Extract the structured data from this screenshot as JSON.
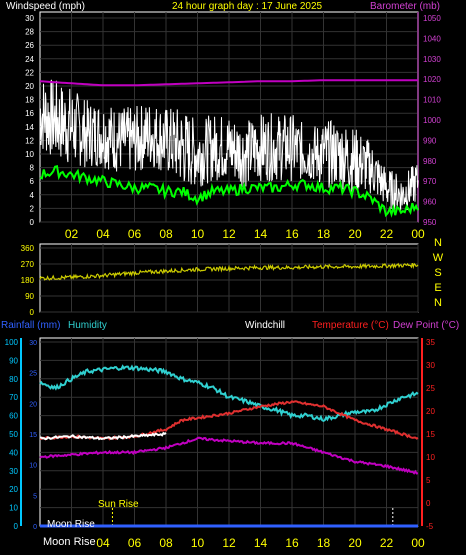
{
  "header": {
    "windspeed": "Windspeed (mph)",
    "title": "24 hour graph day : 17 June 2025",
    "barometer": "Barometer (mb)"
  },
  "middle_labels": {
    "rainfall": "Rainfall (mm)",
    "humidity": "Humidity",
    "windchill": "Windchill",
    "temperature": "Temperature (°C)",
    "dewpoint": "Dew Point (°C)"
  },
  "events": {
    "sun_rise": "Sun Rise",
    "moon_rise": "Moon Rise",
    "moon_phase": "Moon Rise"
  },
  "colors": {
    "wind": "#ffffff",
    "gust": "#00ff00",
    "barometer": "#c000c0",
    "direction": "#cccc00",
    "humidity": "#30d0d0",
    "temperature": "#e03030",
    "dewpoint": "#c000c0",
    "windchill": "#ffffff",
    "rainfall": "#3060ff",
    "axis_yellow": "#ffff00",
    "axis_cyan": "#00c8ff",
    "axis_red": "#ff2020"
  },
  "chart_data": [
    {
      "type": "line",
      "name": "wind-barometer",
      "x_ticks": [
        "02",
        "04",
        "06",
        "08",
        "10",
        "12",
        "14",
        "16",
        "18",
        "20",
        "22",
        "00"
      ],
      "y_left_ticks": [
        "0",
        "2",
        "4",
        "6",
        "8",
        "10",
        "12",
        "14",
        "16",
        "18",
        "20",
        "22",
        "24",
        "26",
        "28",
        "30"
      ],
      "y_right_ticks": [
        "950",
        "960",
        "970",
        "980",
        "990",
        "1000",
        "1010",
        "1020",
        "1030",
        "1040",
        "1050"
      ],
      "ylim_left": [
        0,
        30
      ],
      "ylim_right": [
        950,
        1050
      ],
      "xlim": [
        0,
        24
      ],
      "series": [
        {
          "key": "windspeed",
          "x": [
            0,
            1,
            2,
            3,
            4,
            5,
            6,
            7,
            8,
            9,
            10,
            11,
            12,
            13,
            14,
            15,
            16,
            17,
            18,
            19,
            20,
            21,
            22,
            23,
            24
          ],
          "values": [
            16,
            15,
            14,
            13,
            13,
            12,
            12,
            13,
            12,
            11,
            10,
            11,
            11,
            10,
            11,
            11,
            11,
            10,
            10,
            10,
            9,
            8,
            5,
            4,
            6
          ],
          "spread": [
            6,
            6,
            6,
            5,
            5,
            5,
            5,
            5,
            5,
            6,
            5,
            5,
            5,
            5,
            5,
            5,
            5,
            4,
            5,
            5,
            5,
            4,
            3,
            3,
            3
          ]
        },
        {
          "key": "gust",
          "x": [
            0,
            1,
            2,
            3,
            4,
            5,
            6,
            7,
            8,
            9,
            10,
            11,
            12,
            13,
            14,
            15,
            16,
            17,
            18,
            19,
            20,
            21,
            22,
            23,
            24
          ],
          "values": [
            7,
            7.5,
            7,
            6.5,
            6,
            5.5,
            5,
            5,
            4.5,
            4.5,
            3.5,
            4.5,
            4.5,
            5,
            5,
            5,
            5.5,
            5.5,
            5,
            5,
            4.5,
            3.5,
            1.5,
            1.5,
            2.5
          ]
        },
        {
          "key": "barometer",
          "x": [
            0,
            2,
            4,
            6,
            8,
            10,
            12,
            14,
            16,
            18,
            20,
            22,
            24
          ],
          "values": [
            1019,
            1018,
            1017,
            1017,
            1017.5,
            1018,
            1018.5,
            1019,
            1019,
            1019.5,
            1019.5,
            1019.5,
            1019.5
          ]
        }
      ]
    },
    {
      "type": "line",
      "name": "wind-direction",
      "y_ticks": [
        "0",
        "90",
        "180",
        "270",
        "360"
      ],
      "y_right_ticks": [
        "N",
        "W",
        "S",
        "E",
        "N"
      ],
      "ylim": [
        0,
        360
      ],
      "series": [
        {
          "key": "direction",
          "x": [
            0,
            2,
            4,
            6,
            8,
            10,
            12,
            14,
            16,
            18,
            20,
            22,
            24
          ],
          "values": [
            190,
            195,
            205,
            220,
            230,
            240,
            245,
            250,
            250,
            255,
            255,
            260,
            265
          ]
        }
      ]
    },
    {
      "type": "line",
      "name": "temperature-humidity",
      "y_left_ticks": [
        "0",
        "10",
        "20",
        "30",
        "40",
        "50",
        "60",
        "70",
        "80",
        "90",
        "100"
      ],
      "y_humidity_ticks": [
        "0",
        "5",
        "10",
        "15",
        "20",
        "25",
        "30"
      ],
      "y_right_ticks": [
        "-5",
        "0",
        "5",
        "10",
        "15",
        "20",
        "25",
        "30",
        "35"
      ],
      "ylim_left": [
        0,
        100
      ],
      "ylim_right": [
        -5,
        35
      ],
      "series": [
        {
          "key": "humidity",
          "x": [
            0,
            1,
            2,
            3,
            4,
            5,
            6,
            7,
            8,
            9,
            10,
            11,
            12,
            13,
            14,
            15,
            16,
            17,
            18,
            19,
            20,
            21,
            22,
            23,
            24
          ],
          "values": [
            78,
            75,
            80,
            84,
            85,
            86,
            86,
            85,
            84,
            80,
            78,
            75,
            70,
            68,
            65,
            63,
            60,
            60,
            58,
            60,
            62,
            62,
            66,
            70,
            72
          ]
        },
        {
          "key": "temperature",
          "x": [
            0,
            2,
            4,
            6,
            8,
            9,
            10,
            12,
            14,
            16,
            18,
            20,
            22,
            24
          ],
          "values": [
            14,
            14.5,
            14,
            14.5,
            16,
            18,
            18.5,
            19.5,
            21,
            22,
            21,
            18,
            16,
            14
          ]
        },
        {
          "key": "windchill",
          "x": [
            0,
            2,
            4,
            6,
            8
          ],
          "values": [
            14,
            14.5,
            14,
            14.5,
            15
          ]
        },
        {
          "key": "dewpoint",
          "x": [
            0,
            2,
            4,
            6,
            8,
            10,
            12,
            14,
            16,
            18,
            20,
            22,
            24
          ],
          "values": [
            10,
            10.5,
            11,
            11,
            12,
            14,
            13.5,
            13,
            13,
            11,
            9,
            8,
            6.5
          ]
        },
        {
          "key": "rainfall",
          "x": [
            0,
            24
          ],
          "values": [
            0,
            0
          ]
        }
      ]
    }
  ]
}
